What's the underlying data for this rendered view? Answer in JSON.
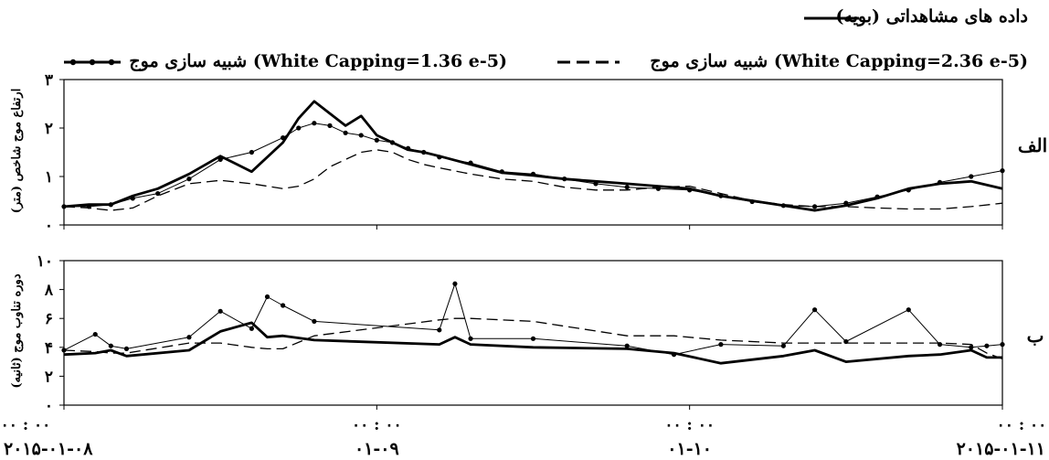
{
  "chart_data": [
    {
      "type": "line",
      "panel_label": "الف",
      "ylabel": "ارتفاع موج شاخص (متر)",
      "ylim": [
        0,
        3
      ],
      "yticks": [
        "۰",
        "۱",
        "۲",
        "۳"
      ],
      "grid": false,
      "x": [
        0,
        0.08,
        0.15,
        0.22,
        0.3,
        0.4,
        0.5,
        0.6,
        0.7,
        0.75,
        0.8,
        0.85,
        0.9,
        0.95,
        1.0,
        1.05,
        1.1,
        1.15,
        1.2,
        1.3,
        1.4,
        1.5,
        1.6,
        1.7,
        1.8,
        1.9,
        2.0,
        2.1,
        2.2,
        2.3,
        2.4,
        2.5,
        2.6,
        2.7,
        2.8,
        2.9,
        3.0
      ],
      "series": [
        {
          "name": "داده های مشاهداتی (بویه)",
          "style": "solid-thick",
          "values": [
            0.38,
            0.42,
            0.42,
            0.6,
            0.75,
            1.05,
            1.42,
            1.1,
            1.7,
            2.2,
            2.55,
            2.3,
            2.05,
            2.25,
            1.85,
            1.7,
            1.55,
            1.5,
            1.42,
            1.25,
            1.08,
            1.02,
            0.95,
            0.9,
            0.85,
            0.8,
            0.75,
            0.6,
            0.5,
            0.4,
            0.3,
            0.4,
            0.55,
            0.75,
            0.85,
            0.9,
            0.75
          ]
        },
        {
          "name": "شبیه سازی موج (White Capping=2.36 e-5)",
          "style": "dashed",
          "values": [
            0.38,
            0.35,
            0.3,
            0.35,
            0.6,
            0.85,
            0.92,
            0.85,
            0.75,
            0.8,
            0.95,
            1.2,
            1.35,
            1.5,
            1.55,
            1.5,
            1.35,
            1.25,
            1.18,
            1.05,
            0.95,
            0.9,
            0.78,
            0.72,
            0.72,
            0.78,
            0.8,
            0.65,
            0.5,
            0.42,
            0.38,
            0.38,
            0.35,
            0.33,
            0.33,
            0.38,
            0.45
          ]
        },
        {
          "name": "شبیه سازی موج (White Capping=1.36 e-5)",
          "style": "solid-dots",
          "values": [
            0.38,
            0.38,
            0.42,
            0.55,
            0.65,
            0.95,
            1.35,
            1.5,
            1.8,
            2.0,
            2.1,
            2.05,
            1.9,
            1.85,
            1.75,
            1.7,
            1.58,
            1.5,
            1.4,
            1.28,
            1.1,
            1.05,
            0.95,
            0.85,
            0.78,
            0.75,
            0.72,
            0.6,
            0.48,
            0.4,
            0.38,
            0.45,
            0.58,
            0.72,
            0.88,
            1.0,
            1.12
          ]
        }
      ]
    },
    {
      "type": "line",
      "panel_label": "ب",
      "ylabel": "دوره تناوب موج (ثانیه)",
      "ylim": [
        0,
        10
      ],
      "yticks": [
        "۰",
        "۲",
        "۴",
        "۶",
        "۸",
        "۱۰"
      ],
      "grid": false,
      "x": [
        0,
        0.1,
        0.15,
        0.2,
        0.4,
        0.5,
        0.6,
        0.65,
        0.7,
        0.8,
        1.2,
        1.25,
        1.3,
        1.5,
        1.8,
        1.95,
        2.1,
        2.3,
        2.4,
        2.5,
        2.7,
        2.8,
        2.9,
        2.95,
        3.0
      ],
      "series": [
        {
          "name": "داده های مشاهداتی (بویه)",
          "style": "solid-thick",
          "values": [
            3.5,
            3.6,
            3.8,
            3.4,
            3.8,
            5.1,
            5.7,
            4.7,
            4.8,
            4.5,
            4.2,
            4.7,
            4.2,
            4.0,
            3.9,
            3.6,
            2.9,
            3.4,
            3.8,
            3.0,
            3.4,
            3.5,
            3.8,
            3.3,
            3.3
          ]
        },
        {
          "name": "شبیه سازی موج (White Capping=2.36 e-5)",
          "style": "dashed",
          "values": [
            3.8,
            3.7,
            3.6,
            3.6,
            4.3,
            4.3,
            4.0,
            3.9,
            3.9,
            4.8,
            5.9,
            6.0,
            6.0,
            5.8,
            4.8,
            4.8,
            4.5,
            4.3,
            4.3,
            4.3,
            4.3,
            4.3,
            4.2,
            3.6,
            3.2
          ]
        },
        {
          "name": "شبیه سازی موج (White Capping=1.36 e-5)",
          "style": "solid-dots",
          "values": [
            3.8,
            4.9,
            4.1,
            3.9,
            4.7,
            6.5,
            5.3,
            7.5,
            6.9,
            5.8,
            5.2,
            8.4,
            4.6,
            4.6,
            4.1,
            3.5,
            4.2,
            4.1,
            6.6,
            4.4,
            6.6,
            4.2,
            4.0,
            4.1,
            4.2
          ]
        }
      ]
    }
  ],
  "xticks": [
    {
      "x": 0,
      "time": "۰۰ : ۰۰",
      "date": "۲۰۱۵-۰۱-۰۸"
    },
    {
      "x": 1,
      "time": "۰۰ : ۰۰",
      "date": "۰۱-۰۹"
    },
    {
      "x": 2,
      "time": "۰۰ : ۰۰",
      "date": "۰۱-۱۰"
    },
    {
      "x": 3,
      "time": "۰۰ : ۰۰",
      "date": "۲۰۱۵-۰۱-۱۱"
    }
  ],
  "xlim": [
    0,
    3
  ],
  "legend": {
    "placement": "top",
    "items": [
      {
        "label": "داده های مشاهداتی (بویه)",
        "style": "solid-thick"
      },
      {
        "label": "شبیه سازی موج (White Capping=2.36 e-5)",
        "style": "dashed"
      },
      {
        "label": "شبیه سازی موج (White Capping=1.36 e-5)",
        "style": "solid-dots"
      }
    ]
  },
  "colors": {
    "line": "#000000",
    "background": "#ffffff"
  }
}
